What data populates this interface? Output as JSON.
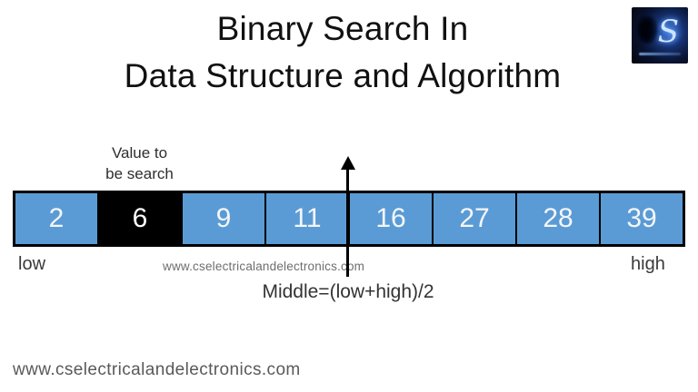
{
  "title": {
    "line1": "Binary Search In",
    "line2": "Data Structure and Algorithm"
  },
  "logo": {
    "letter": "S"
  },
  "value_label": {
    "line1": "Value to",
    "line2": "be search"
  },
  "array": {
    "cells": [
      "2",
      "6",
      "9",
      "11",
      "16",
      "27",
      "28",
      "39"
    ],
    "highlight_index": 1,
    "low_label": "low",
    "high_label": "high"
  },
  "middle_formula": "Middle=(low+high)/2",
  "watermark": "www.cselectricalandelectronics.com",
  "footer_url": "www.cselectricalandelectronics.com",
  "colors": {
    "cell_blue": "#5b9bd5",
    "highlight_black": "#000000",
    "cell_text": "#f4f6f8",
    "highlight_text": "#ffffff"
  }
}
